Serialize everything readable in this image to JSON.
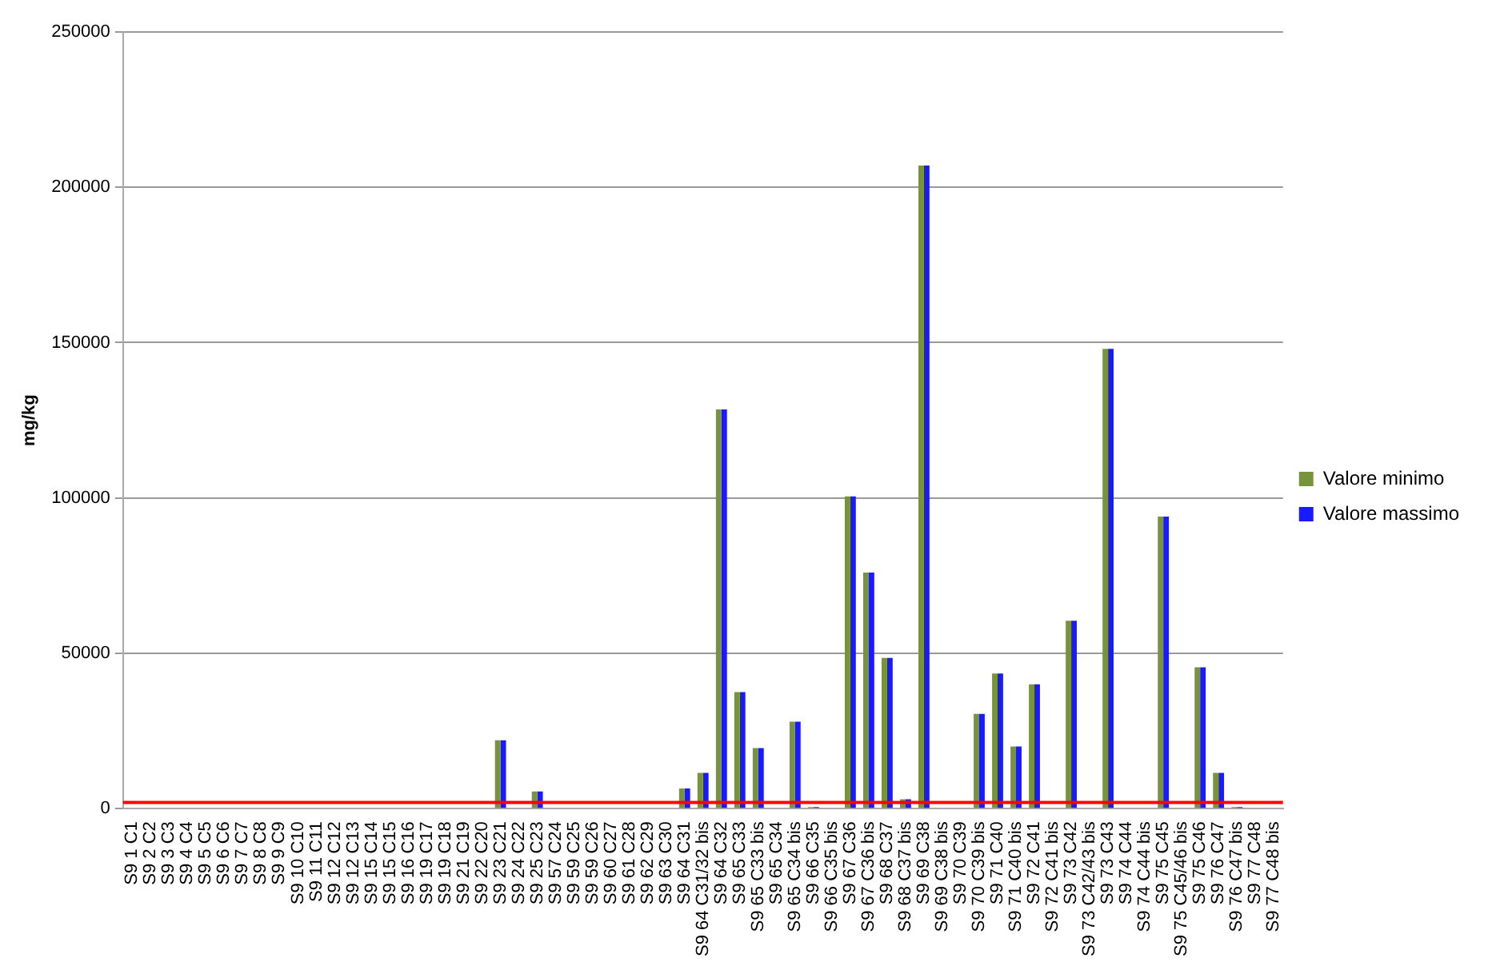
{
  "chart_data": {
    "type": "bar",
    "ylabel": "mg/kg",
    "categories": [
      "S9 1 C1",
      "S9 2 C2",
      "S9 3 C3",
      "S9 4 C4",
      "S9 5 C5",
      "S9 6 C6",
      "S9 7 C7",
      "S9 8 C8",
      "S9 9 C9",
      "S9 10 C10",
      "S9 11 C11",
      "S9 12 C12",
      "S9 12 C13",
      "S9 15 C14",
      "S9 15 C15",
      "S9 16 C16",
      "S9 19 C17",
      "S9 19 C18",
      "S9 21 C19",
      "S9 22 C20",
      "S9 23 C21",
      "S9 24 C22",
      "S9 25 C23",
      "S9 57 C24",
      "S9 59 C25",
      "S9 59 C26",
      "S9 60 C27",
      "S9 61 C28",
      "S9 62 C29",
      "S9 63 C30",
      "S9 64 C31",
      "S9 64 C31/32 bis",
      "S9 64 C32",
      "S9 65 C33",
      "S9 65 C33 bis",
      "S9 65 C34",
      "S9 65 C34 bis",
      "S9 66 C35",
      "S9 66 C35 bis",
      "S9 67 C36",
      "S9 67 C36 bis",
      "S9 68 C37",
      "S9 68 C37 bis",
      "S9 69 C38",
      "S9 69 C38 bis",
      "S9 70 C39",
      "S9 70 C39 bis",
      "S9 71 C40",
      "S9 71 C40 bis",
      "S9 72 C41",
      "S9 72 C41 bis",
      "S9 73 C42",
      "S9 73 C42/43 bis",
      "S9 73 C43",
      "S9 74 C44",
      "S9 74 C44 bis",
      "S9 75 C45",
      "S9 75 C45/46 bis",
      "S9 75 C46",
      "S9 76 C47",
      "S9 76 C47 bis",
      "S9 77 C48",
      "S9 77 C48 bis"
    ],
    "series": [
      {
        "name": "Valore minimo",
        "color": "#77933c",
        "values": [
          0,
          0,
          0,
          0,
          0,
          0,
          0,
          0,
          0,
          0,
          0,
          0,
          0,
          0,
          0,
          0,
          0,
          0,
          0,
          0,
          22000,
          0,
          5500,
          0,
          0,
          0,
          0,
          0,
          0,
          0,
          6500,
          11500,
          128500,
          37500,
          19500,
          0,
          28000,
          500,
          0,
          100500,
          76000,
          48500,
          3000,
          207000,
          0,
          0,
          30500,
          43500,
          20000,
          40000,
          0,
          60500,
          0,
          148000,
          0,
          0,
          94000,
          0,
          45500,
          11500,
          500,
          0,
          0
        ]
      },
      {
        "name": "Valore massimo",
        "color": "#1a1aff",
        "values": [
          0,
          0,
          0,
          0,
          0,
          0,
          0,
          0,
          0,
          0,
          0,
          0,
          0,
          0,
          0,
          0,
          0,
          0,
          0,
          0,
          22000,
          0,
          5500,
          0,
          0,
          0,
          0,
          0,
          0,
          0,
          6500,
          11500,
          128500,
          37500,
          19500,
          0,
          28000,
          500,
          0,
          100500,
          76000,
          48500,
          3000,
          207000,
          0,
          0,
          30500,
          43500,
          20000,
          40000,
          0,
          60500,
          0,
          148000,
          0,
          0,
          94000,
          0,
          45500,
          11500,
          500,
          0,
          0
        ]
      }
    ],
    "ylim": [
      0,
      250000
    ],
    "yticks": [
      0,
      50000,
      100000,
      150000,
      200000,
      250000
    ],
    "grid": "y",
    "legend": "right",
    "ref_lines": [
      {
        "axis": "y",
        "value": 2000,
        "color": "#ff0000"
      }
    ]
  }
}
